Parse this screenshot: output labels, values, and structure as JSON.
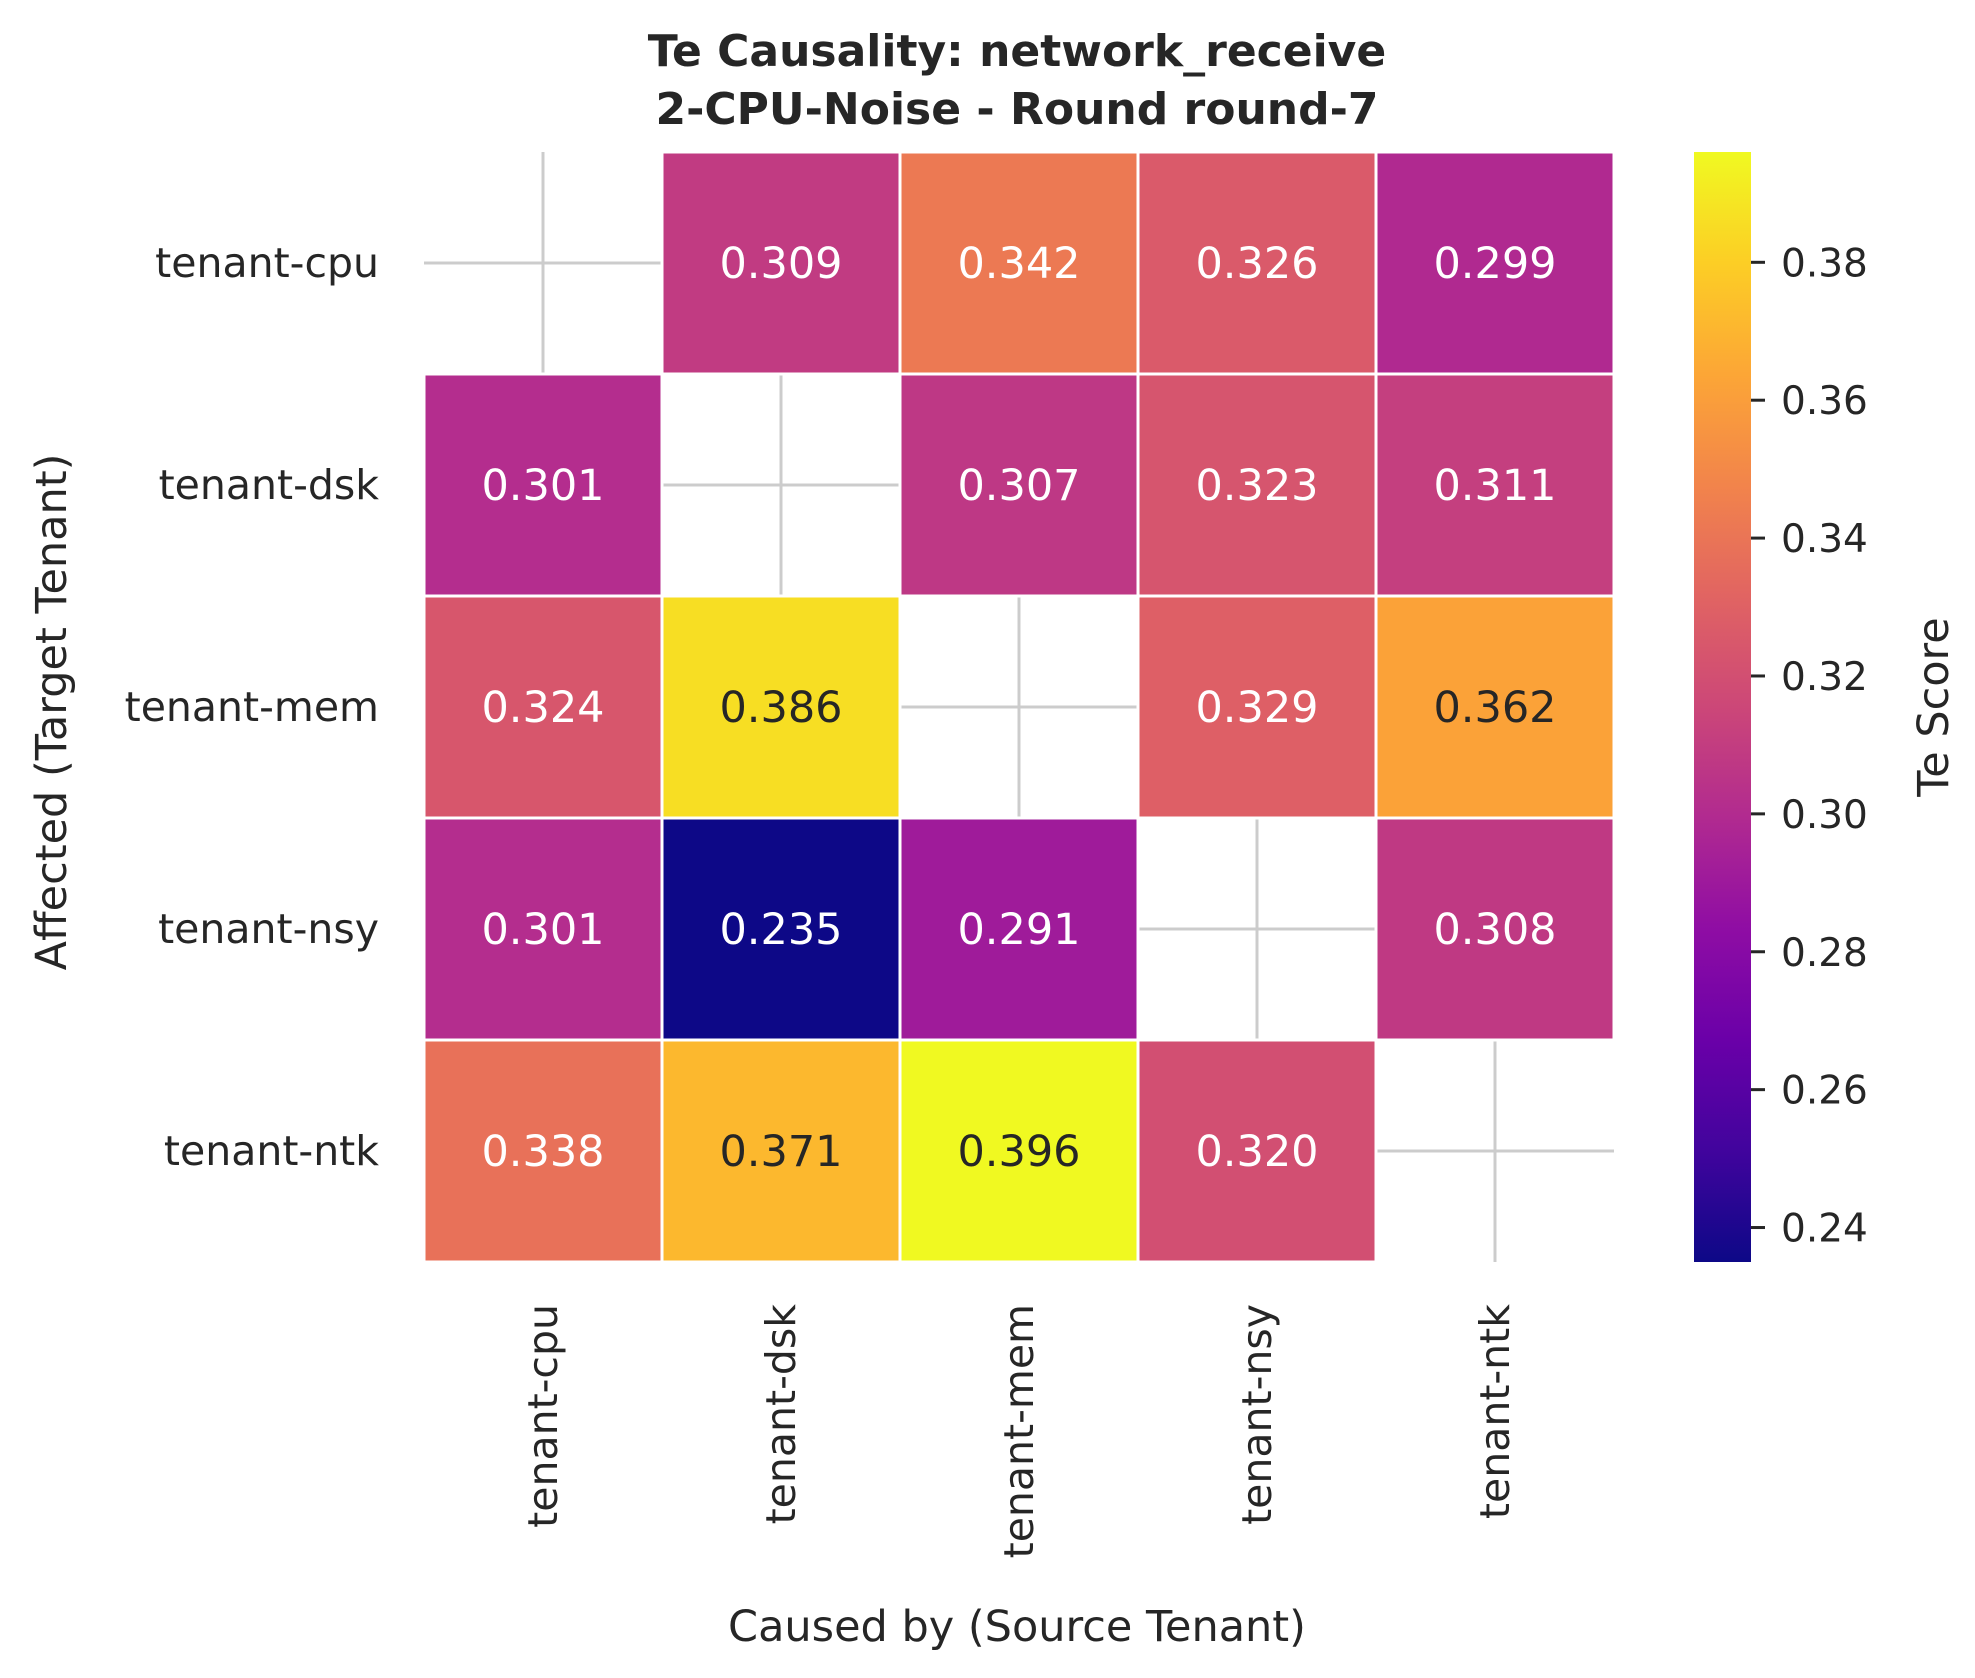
{
  "chart_data": {
    "type": "heatmap",
    "title_line1": "Te Causality: network_receive",
    "title_line2": "2-CPU-Noise - Round round-7",
    "xlabel": "Caused by (Source Tenant)",
    "ylabel": "Affected (Target Tenant)",
    "x_categories": [
      "tenant-cpu",
      "tenant-dsk",
      "tenant-mem",
      "tenant-nsy",
      "tenant-ntk"
    ],
    "y_categories": [
      "tenant-cpu",
      "tenant-dsk",
      "tenant-mem",
      "tenant-nsy",
      "tenant-ntk"
    ],
    "values": [
      [
        null,
        0.309,
        0.342,
        0.326,
        0.299
      ],
      [
        0.301,
        null,
        0.307,
        0.323,
        0.311
      ],
      [
        0.324,
        0.386,
        null,
        0.329,
        0.362
      ],
      [
        0.301,
        0.235,
        0.291,
        null,
        0.308
      ],
      [
        0.338,
        0.371,
        0.396,
        0.32,
        null
      ]
    ],
    "value_labels": [
      [
        "",
        "0.309",
        "0.342",
        "0.326",
        "0.299"
      ],
      [
        "0.301",
        "",
        "0.307",
        "0.323",
        "0.311"
      ],
      [
        "0.324",
        "0.386",
        "",
        "0.329",
        "0.362"
      ],
      [
        "0.301",
        "0.235",
        "0.291",
        "",
        "0.308"
      ],
      [
        "0.338",
        "0.371",
        "0.396",
        "0.320",
        ""
      ]
    ],
    "colormap": "plasma",
    "colorbar": {
      "label": "Te Score",
      "min": 0.235,
      "max": 0.396,
      "ticks": [
        0.24,
        0.26,
        0.28,
        0.3,
        0.32,
        0.34,
        0.36,
        0.38
      ],
      "tick_labels": [
        "0.24",
        "0.26",
        "0.28",
        "0.30",
        "0.32",
        "0.34",
        "0.36",
        "0.38"
      ]
    },
    "grid": true
  }
}
